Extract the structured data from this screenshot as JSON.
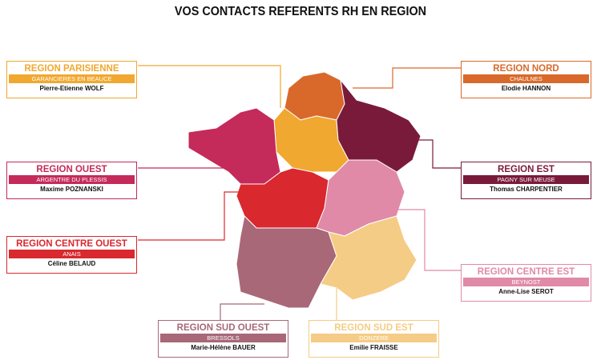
{
  "title": "VOS CONTACTS REFERENTS RH EN REGION",
  "regions": [
    {
      "name": "REGION PARISIENNE",
      "site": "GARANCIERES EN BEAUCE",
      "contact": "Pierre-Etienne WOLF"
    },
    {
      "name": "REGION NORD",
      "site": "CHAULNES",
      "contact": "Elodie HANNON"
    },
    {
      "name": "REGION OUEST",
      "site": "ARGENTRE DU PLESSIS",
      "contact": "Maxime POZNANSKI"
    },
    {
      "name": "REGION EST",
      "site": "PAGNY SUR MEUSE",
      "contact": "Thomas CHARPENTIER"
    },
    {
      "name": "REGION CENTRE OUEST",
      "site": "ANAIS",
      "contact": "Céline BELAUD"
    },
    {
      "name": "REGION CENTRE EST",
      "site": "BEYNOST",
      "contact": "Anne-Lise SEROT"
    },
    {
      "name": "REGION SUD OUEST",
      "site": "BRESSOLS",
      "contact": "Marie-Hélène BAUER"
    },
    {
      "name": "REGION SUD EST",
      "site": "DONZERE",
      "contact": "Emilie FRAISSE"
    }
  ]
}
